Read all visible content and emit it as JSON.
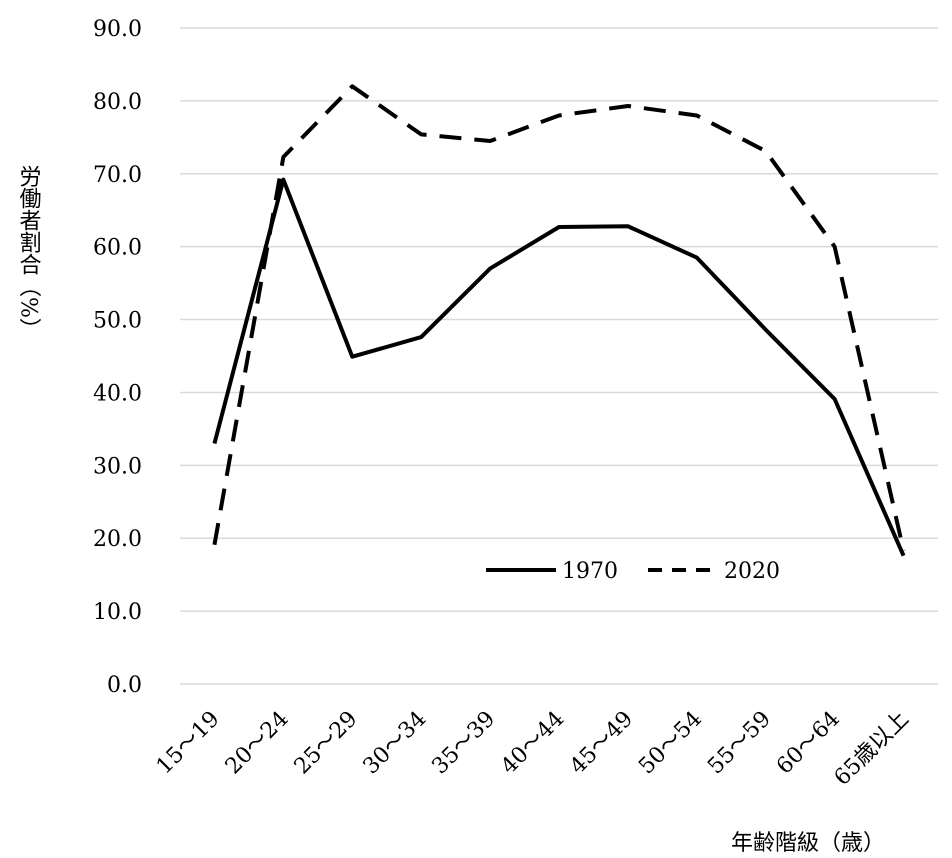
{
  "chart_data": {
    "type": "line",
    "categories": [
      "15〜19",
      "20〜24",
      "25〜29",
      "30〜34",
      "35〜39",
      "40〜44",
      "45〜49",
      "50〜54",
      "55〜59",
      "60〜64",
      "65歳以上"
    ],
    "series": [
      {
        "name": "1970",
        "style": "solid",
        "color": "#000000",
        "values": [
          33.0,
          69.2,
          44.9,
          47.6,
          57.0,
          62.7,
          62.8,
          58.5,
          48.6,
          39.1,
          17.6
        ]
      },
      {
        "name": "2020",
        "style": "dashed",
        "color": "#000000",
        "values": [
          19.1,
          72.3,
          82.0,
          75.4,
          74.5,
          78.0,
          79.3,
          78.0,
          73.1,
          60.0,
          18.3
        ]
      }
    ],
    "ylim": [
      0,
      90
    ],
    "yticks": [
      "0.0",
      "10.0",
      "20.0",
      "30.0",
      "40.0",
      "50.0",
      "60.0",
      "70.0",
      "80.0",
      "90.0"
    ],
    "ylabel": "労働者割合（%）",
    "xlabel": "年齢階級（歳）",
    "grid": true,
    "legend_position": "inside-bottom-right"
  }
}
